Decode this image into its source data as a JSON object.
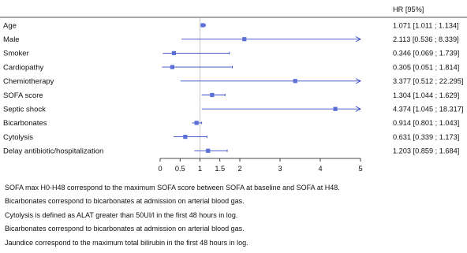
{
  "chart_data": {
    "type": "forest",
    "hr_column_header": "HR [95%]",
    "reference_value": 1,
    "xlim": [
      0,
      5
    ],
    "xticks": [
      0,
      0.5,
      1,
      1.5,
      2,
      3,
      4,
      5
    ],
    "xtick_labels": [
      "0",
      "0.5",
      "1",
      "1.5",
      "2",
      "3",
      "4",
      "5"
    ],
    "marker_color": "#5b6fd6",
    "line_color": "#3346c8",
    "rows": [
      {
        "label": "Age",
        "hr": 1.071,
        "lower": 1.011,
        "upper": 1.134,
        "ci_text": "1.071 [1.011 ; 1.134]",
        "arrow": false
      },
      {
        "label": "Male",
        "hr": 2.113,
        "lower": 0.536,
        "upper": 8.339,
        "ci_text": "2.113 [0.536 ; 8.339]",
        "arrow": true
      },
      {
        "label": "Smoker",
        "hr": 0.346,
        "lower": 0.069,
        "upper": 1.739,
        "ci_text": "0.346 [0.069 ; 1.739]",
        "arrow": false
      },
      {
        "label": "Cardiopathy",
        "hr": 0.305,
        "lower": 0.051,
        "upper": 1.814,
        "ci_text": "0.305 [0.051 ; 1.814]",
        "arrow": false
      },
      {
        "label": "Chemiotherapy",
        "hr": 3.377,
        "lower": 0.512,
        "upper": 22.295,
        "ci_text": "3.377 [0.512 ; 22.295]",
        "arrow": true
      },
      {
        "label": "SOFA score",
        "hr": 1.304,
        "lower": 1.044,
        "upper": 1.629,
        "ci_text": "1.304 [1.044 ; 1.629]",
        "arrow": false
      },
      {
        "label": "Septic shock",
        "hr": 4.374,
        "lower": 1.045,
        "upper": 18.317,
        "ci_text": "4.374 [1.045 ; 18.317]",
        "arrow": true
      },
      {
        "label": "Bicarbonates",
        "hr": 0.914,
        "lower": 0.801,
        "upper": 1.043,
        "ci_text": "0.914 [0.801 ; 1.043]",
        "arrow": false
      },
      {
        "label": "Cytolysis",
        "hr": 0.631,
        "lower": 0.339,
        "upper": 1.173,
        "ci_text": "0.631 [0.339 ; 1.173]",
        "arrow": false
      },
      {
        "label": "Delay antibiotic/hospitalization",
        "hr": 1.203,
        "lower": 0.859,
        "upper": 1.684,
        "ci_text": "1.203 [0.859 ; 1.684]",
        "arrow": false
      }
    ]
  },
  "footnotes": [
    "SOFA max H0-H48 correspond to the maximum SOFA score between SOFA at baseline and SOFA at H48.",
    "Bicarbonates correspond to bicarbonates at admission on arterial blood gas.",
    "Cytolysis is defined as ALAT greater than 50UI/l in the first 48 hours in log.",
    "Bicarbonates correspond to bicarbonates at admission on arterial blood gas.",
    "Jaundice correspond to the maximum total bilirubin in the first 48 hours in log."
  ]
}
